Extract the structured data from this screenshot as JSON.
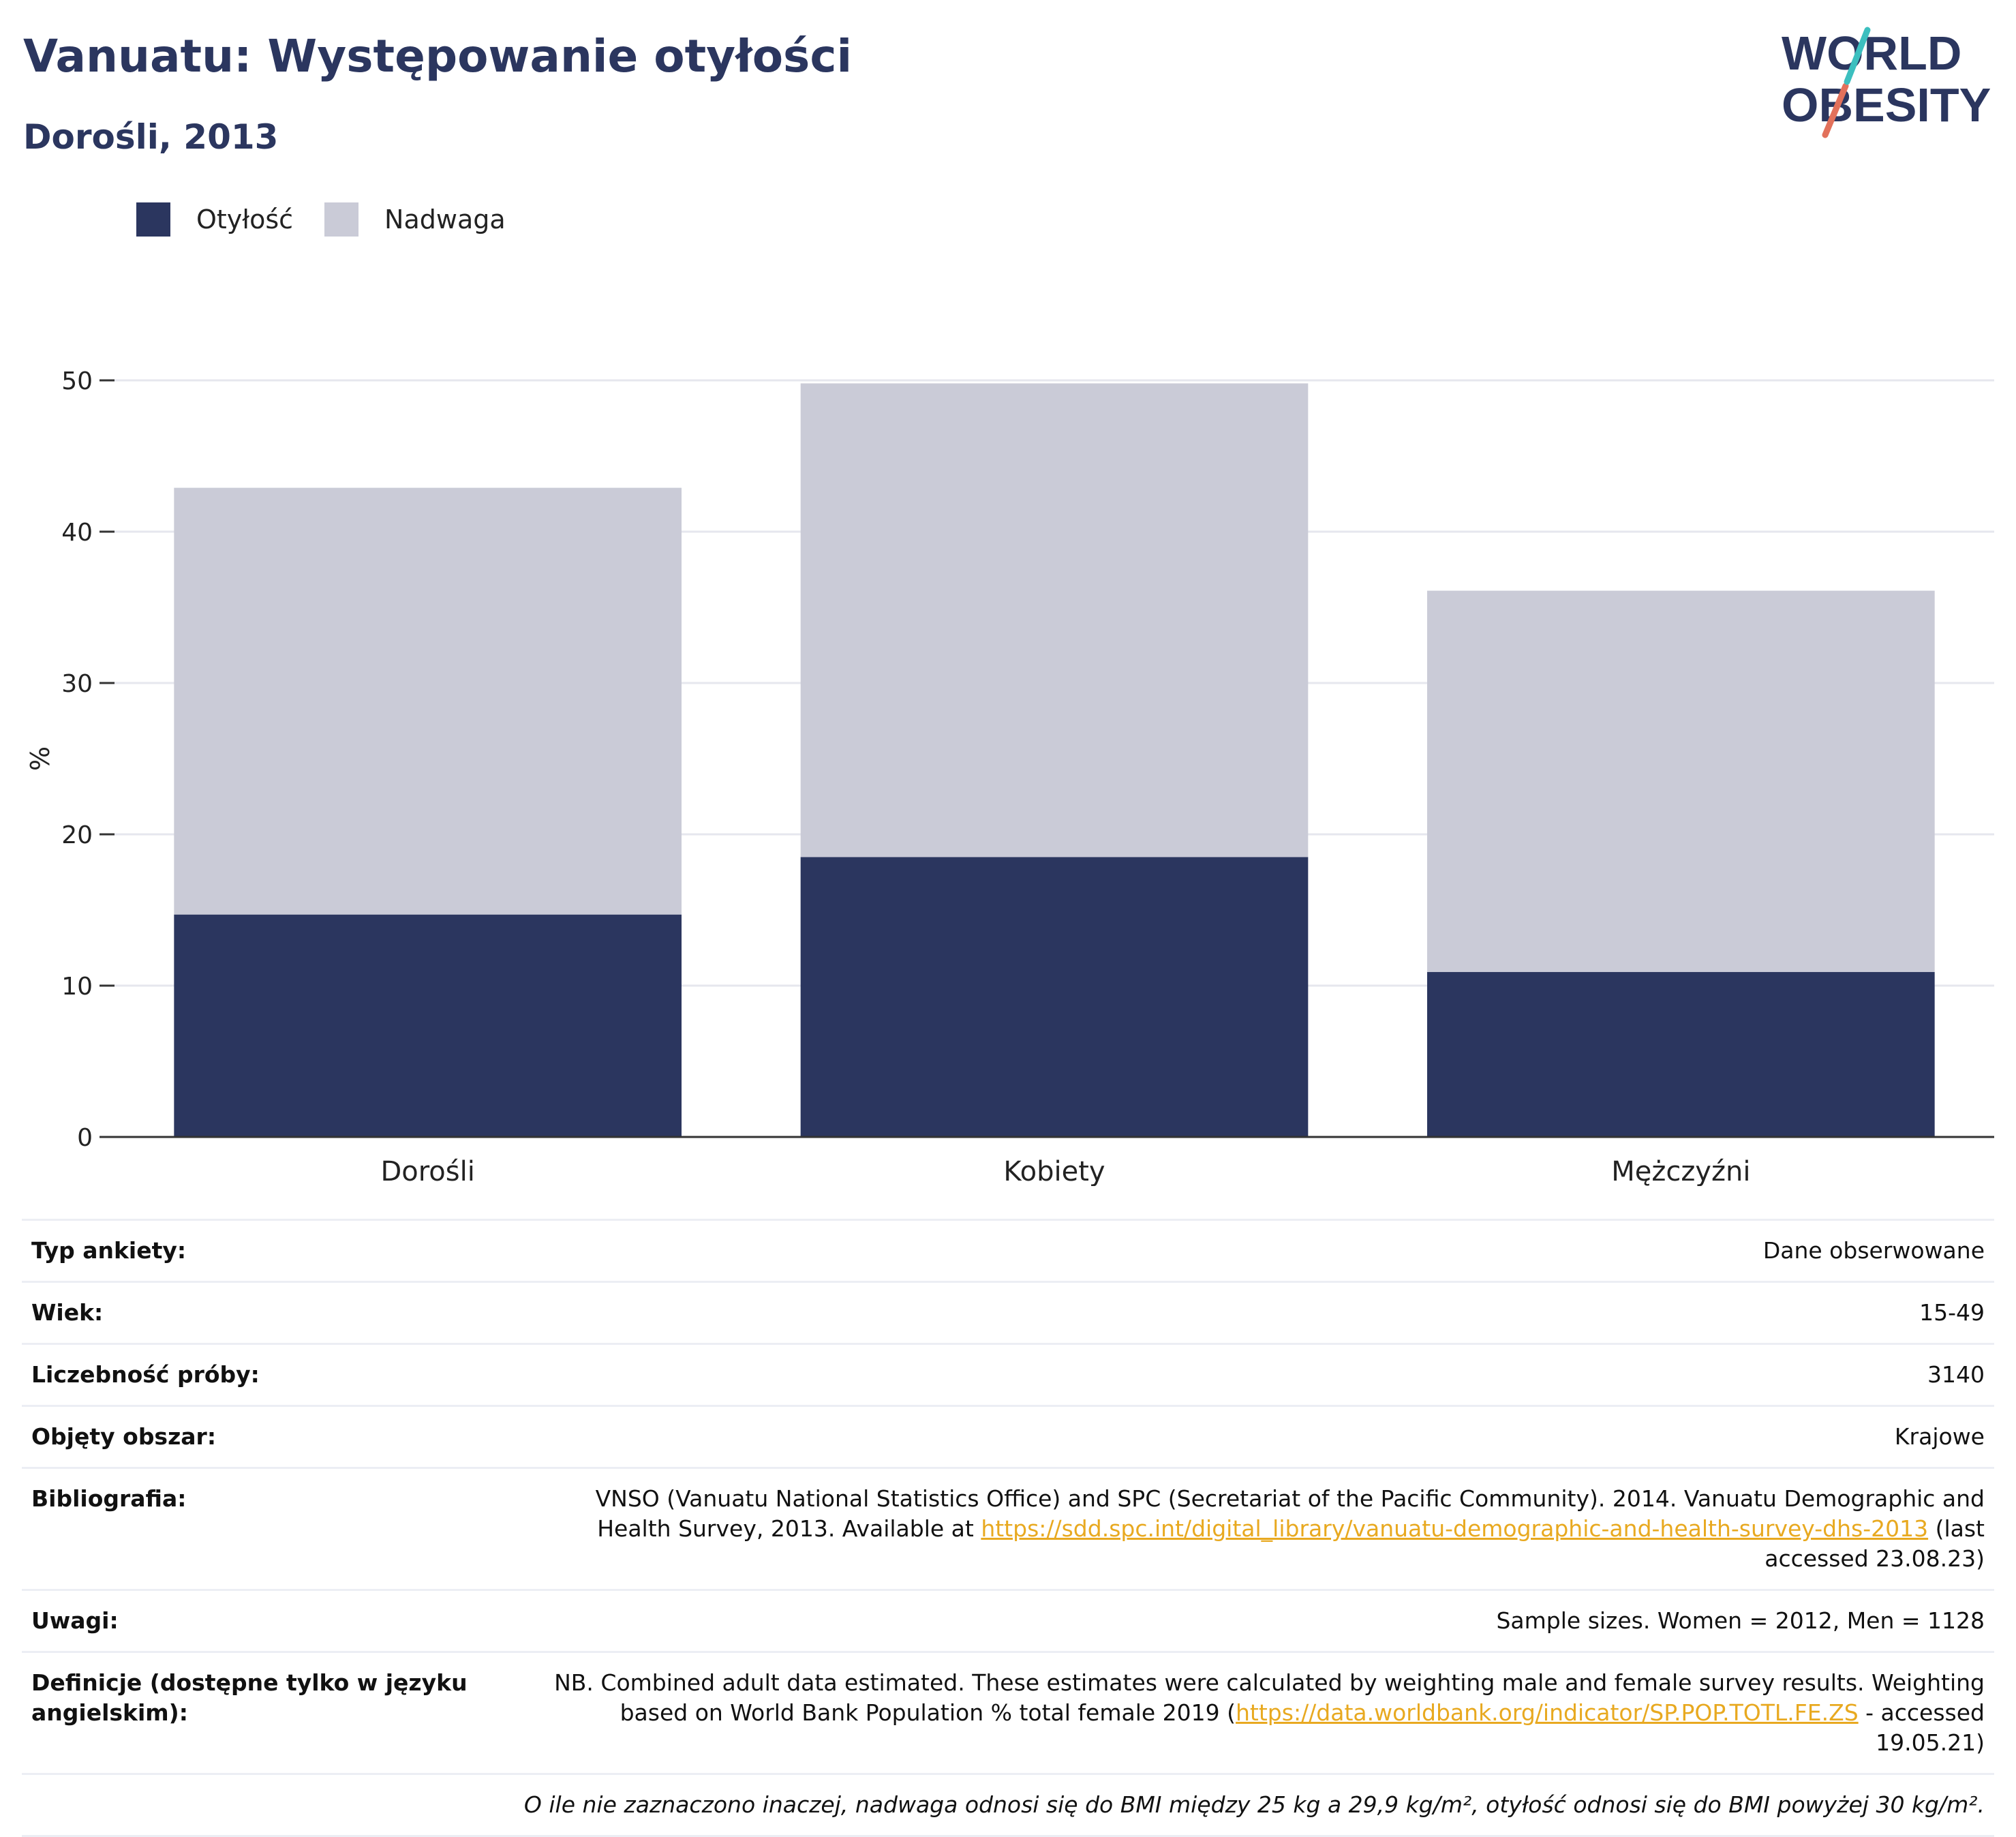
{
  "header": {
    "title": "Vanuatu: Występowanie otyłości",
    "subtitle": "Dorośli, 2013"
  },
  "logo": {
    "line1": "WORLD",
    "line2": "OBESITY"
  },
  "legend": [
    {
      "label": "Otyłość",
      "color": "#2b365f"
    },
    {
      "label": "Nadwaga",
      "color": "#cacbd7"
    }
  ],
  "chart_data": {
    "type": "bar",
    "stacked": true,
    "categories": [
      "Dorośli",
      "Kobiety",
      "Mężczyźni"
    ],
    "series": [
      {
        "name": "Otyłość",
        "values": [
          14.7,
          18.5,
          10.9
        ],
        "color": "#2b365f"
      },
      {
        "name": "Nadwaga",
        "values": [
          28.2,
          31.3,
          25.2
        ],
        "color": "#cacbd7"
      }
    ],
    "title": "",
    "xlabel": "",
    "ylabel": "%",
    "ylim": [
      0,
      50
    ],
    "yticks": [
      0,
      10,
      20,
      30,
      40,
      50
    ],
    "grid": true,
    "legend_position": "top-left"
  },
  "info": {
    "rows": [
      {
        "label": "Typ ankiety:",
        "value": "Dane obserwowane"
      },
      {
        "label": "Wiek:",
        "value": "15-49"
      },
      {
        "label": "Liczebność próby:",
        "value": "3140"
      },
      {
        "label": "Objęty obszar:",
        "value": "Krajowe"
      }
    ],
    "bibliography": {
      "label": "Bibliografia:",
      "text_before": "VNSO (Vanuatu National Statistics Office) and SPC (Secretariat of the Pacific Community). 2014. Vanuatu Demographic and Health Survey, 2013. Available at ",
      "link": "https://sdd.spc.int/digital_library/vanuatu-demographic-and-health-survey-dhs-2013",
      "text_after": " (last accessed 23.08.23)"
    },
    "notes": {
      "label": "Uwagi:",
      "value": "Sample sizes. Women = 2012, Men = 1128"
    },
    "definitions": {
      "label": "Definicje (dostępne tylko w języku angielskim):",
      "text_before": "NB. Combined adult data estimated. These estimates were calculated by weighting male and female survey results. Weighting based on World Bank Population % total female 2019 (",
      "link": "https://data.worldbank.org/indicator/SP.POP.TOTL.FE.ZS",
      "text_after": " - accessed 19.05.21)"
    },
    "footnote": "O ile nie zaznaczono inaczej, nadwaga odnosi się do BMI między 25 kg a 29,9 kg/m², otyłość odnosi się do BMI powyżej 30 kg/m²."
  }
}
